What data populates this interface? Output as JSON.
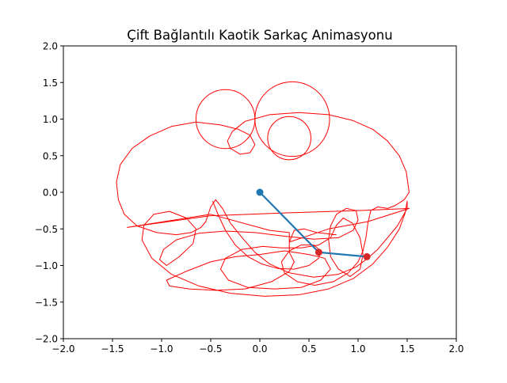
{
  "chart_data": {
    "type": "line",
    "title": "Çift Bağlantılı Kaotik Sarkaç Animasyonu",
    "xlabel": "",
    "ylabel": "",
    "xlim": [
      -2.0,
      2.0
    ],
    "ylim": [
      -2.0,
      2.0
    ],
    "xticks": [
      "−2.0",
      "−1.5",
      "−1.0",
      "−0.5",
      "0.0",
      "0.5",
      "1.0",
      "1.5",
      "2.0"
    ],
    "yticks": [
      "−2.0",
      "−1.5",
      "−1.0",
      "−0.5",
      "0.0",
      "0.5",
      "1.0",
      "1.5",
      "2.0"
    ],
    "grid": false,
    "legend": "none",
    "colors": {
      "trace": "#ff0000",
      "rod": "#1f77b4",
      "bob": "#d62728",
      "pivot": "#1f77b4"
    },
    "pendulum": {
      "pivot": [
        0.0,
        0.0
      ],
      "bob1": [
        0.6,
        -0.82
      ],
      "bob2": [
        1.09,
        -0.88
      ]
    },
    "trace": [
      [
        -0.48,
        -0.12
      ],
      [
        -0.42,
        -0.32
      ],
      [
        -0.35,
        -0.52
      ],
      [
        -0.25,
        -0.72
      ],
      [
        -0.12,
        -0.88
      ],
      [
        0.02,
        -0.98
      ],
      [
        0.18,
        -1.04
      ],
      [
        0.35,
        -1.05
      ],
      [
        0.5,
        -1.0
      ],
      [
        0.6,
        -0.9
      ],
      [
        0.62,
        -0.8
      ],
      [
        0.55,
        -0.72
      ],
      [
        0.42,
        -0.72
      ],
      [
        0.3,
        -0.8
      ],
      [
        0.22,
        -0.95
      ],
      [
        0.25,
        -1.1
      ],
      [
        0.38,
        -1.22
      ],
      [
        0.56,
        -1.27
      ],
      [
        0.75,
        -1.22
      ],
      [
        0.9,
        -1.1
      ],
      [
        1.0,
        -0.95
      ],
      [
        1.05,
        -0.8
      ],
      [
        1.08,
        -0.62
      ],
      [
        1.1,
        -0.42
      ],
      [
        1.13,
        -0.25
      ],
      [
        1.2,
        -0.2
      ],
      [
        1.3,
        -0.22
      ],
      [
        1.38,
        -0.18
      ],
      [
        1.47,
        -0.1
      ],
      [
        1.52,
        0.0
      ],
      [
        1.49,
        0.28
      ],
      [
        1.42,
        0.5
      ],
      [
        1.3,
        0.7
      ],
      [
        1.15,
        0.86
      ],
      [
        0.95,
        0.98
      ],
      [
        0.7,
        1.06
      ],
      [
        0.4,
        1.09
      ],
      [
        0.1,
        1.06
      ],
      [
        -0.15,
        0.97
      ],
      [
        -0.28,
        0.83
      ],
      [
        -0.33,
        0.7
      ],
      [
        -0.3,
        0.6
      ],
      [
        -0.2,
        0.52
      ],
      [
        -0.1,
        0.54
      ],
      [
        -0.05,
        0.65
      ],
      [
        -0.1,
        0.78
      ],
      [
        -0.22,
        0.86
      ],
      [
        -0.4,
        0.92
      ],
      [
        -0.65,
        0.96
      ],
      [
        -0.9,
        0.9
      ],
      [
        -1.12,
        0.77
      ],
      [
        -1.3,
        0.6
      ],
      [
        -1.42,
        0.38
      ],
      [
        -1.46,
        0.14
      ],
      [
        -1.44,
        -0.1
      ],
      [
        -1.38,
        -0.3
      ],
      [
        -1.25,
        -0.46
      ],
      [
        -1.05,
        -0.55
      ],
      [
        -0.85,
        -0.58
      ],
      [
        -0.7,
        -0.55
      ],
      [
        -0.6,
        -0.48
      ],
      [
        -0.55,
        -0.4
      ],
      [
        -0.5,
        -0.2
      ],
      [
        -0.45,
        -0.1
      ],
      [
        -0.38,
        -0.22
      ],
      [
        -0.3,
        -0.42
      ],
      [
        -0.18,
        -0.62
      ],
      [
        -0.05,
        -0.82
      ],
      [
        0.1,
        -0.98
      ],
      [
        0.3,
        -1.1
      ],
      [
        0.55,
        -1.16
      ],
      [
        0.8,
        -1.12
      ],
      [
        0.98,
        -1.02
      ],
      [
        1.1,
        -0.9
      ],
      [
        1.2,
        -0.78
      ],
      [
        1.3,
        -0.62
      ],
      [
        1.4,
        -0.46
      ],
      [
        1.5,
        -0.22
      ],
      [
        1.5,
        -0.12
      ],
      [
        1.48,
        -0.28
      ],
      [
        1.42,
        -0.5
      ],
      [
        1.3,
        -0.75
      ],
      [
        1.15,
        -0.98
      ],
      [
        0.95,
        -1.18
      ],
      [
        0.7,
        -1.32
      ],
      [
        0.4,
        -1.4
      ],
      [
        0.05,
        -1.42
      ],
      [
        -0.3,
        -1.38
      ],
      [
        -0.62,
        -1.28
      ],
      [
        -0.9,
        -1.12
      ],
      [
        -1.1,
        -0.9
      ],
      [
        -1.2,
        -0.65
      ],
      [
        -1.18,
        -0.45
      ],
      [
        -1.08,
        -0.3
      ],
      [
        -0.92,
        -0.26
      ],
      [
        -0.75,
        -0.35
      ],
      [
        -0.65,
        -0.5
      ],
      [
        -0.68,
        -0.7
      ],
      [
        -0.82,
        -0.88
      ],
      [
        -0.95,
        -1.0
      ],
      [
        -1.02,
        -0.92
      ],
      [
        -0.98,
        -0.78
      ],
      [
        -0.85,
        -0.65
      ],
      [
        -0.62,
        -0.56
      ],
      [
        -0.35,
        -0.53
      ],
      [
        -0.05,
        -0.55
      ],
      [
        0.25,
        -0.6
      ],
      [
        0.55,
        -0.64
      ],
      [
        0.8,
        -0.62
      ],
      [
        0.95,
        -0.52
      ],
      [
        1.0,
        -0.38
      ],
      [
        0.98,
        -0.25
      ],
      [
        0.88,
        -0.22
      ],
      [
        0.78,
        -0.3
      ],
      [
        0.72,
        -0.46
      ],
      [
        0.7,
        -0.65
      ],
      [
        0.72,
        -0.88
      ],
      [
        0.8,
        -1.05
      ],
      [
        0.92,
        -1.15
      ],
      [
        1.02,
        -1.05
      ],
      [
        1.05,
        -0.85
      ],
      [
        1.02,
        -0.62
      ],
      [
        0.94,
        -0.42
      ],
      [
        0.85,
        -0.35
      ],
      [
        0.78,
        -0.45
      ],
      [
        0.72,
        -0.62
      ],
      [
        0.6,
        -0.72
      ],
      [
        0.42,
        -0.76
      ],
      [
        0.22,
        -0.76
      ],
      [
        0.03,
        -0.74
      ],
      [
        -0.18,
        -0.78
      ],
      [
        -0.35,
        -0.9
      ],
      [
        -0.4,
        -1.05
      ],
      [
        -0.32,
        -1.2
      ],
      [
        -0.12,
        -1.3
      ],
      [
        0.15,
        -1.32
      ],
      [
        0.42,
        -1.3
      ],
      [
        0.62,
        -1.2
      ],
      [
        0.72,
        -1.05
      ],
      [
        0.66,
        -0.9
      ],
      [
        0.5,
        -0.85
      ],
      [
        0.25,
        -0.8
      ],
      [
        0.0,
        -0.85
      ],
      [
        -0.25,
        -0.88
      ],
      [
        -0.5,
        -0.95
      ],
      [
        -0.75,
        -1.08
      ],
      [
        -0.95,
        -1.2
      ],
      [
        -0.92,
        -1.28
      ],
      [
        -0.72,
        -1.32
      ],
      [
        -0.45,
        -1.34
      ],
      [
        -0.15,
        -1.32
      ],
      [
        0.12,
        -1.22
      ],
      [
        0.3,
        -1.08
      ],
      [
        0.35,
        -0.95
      ],
      [
        0.3,
        -0.82
      ],
      [
        0.3,
        -0.55
      ],
      [
        0.1,
        -0.52
      ],
      [
        -0.5,
        -0.3
      ],
      [
        -1.35,
        -0.48
      ],
      [
        -0.5,
        -0.32
      ],
      [
        0.3,
        -0.28
      ],
      [
        1.0,
        -0.25
      ],
      [
        1.52,
        -0.22
      ],
      [
        1.1,
        -0.4
      ],
      [
        0.7,
        -0.5
      ],
      [
        0.3,
        -0.68
      ],
      [
        0.35,
        -0.52
      ],
      [
        0.45,
        -0.5
      ],
      [
        0.58,
        -0.55
      ],
      [
        0.78,
        -0.58
      ]
    ],
    "loops": [
      {
        "c": [
          -0.35,
          1.0
        ],
        "r": 0.3
      },
      {
        "c": [
          0.33,
          1.0
        ],
        "r": 0.38
      },
      {
        "c": [
          0.3,
          0.74
        ],
        "r": 0.22
      }
    ]
  }
}
